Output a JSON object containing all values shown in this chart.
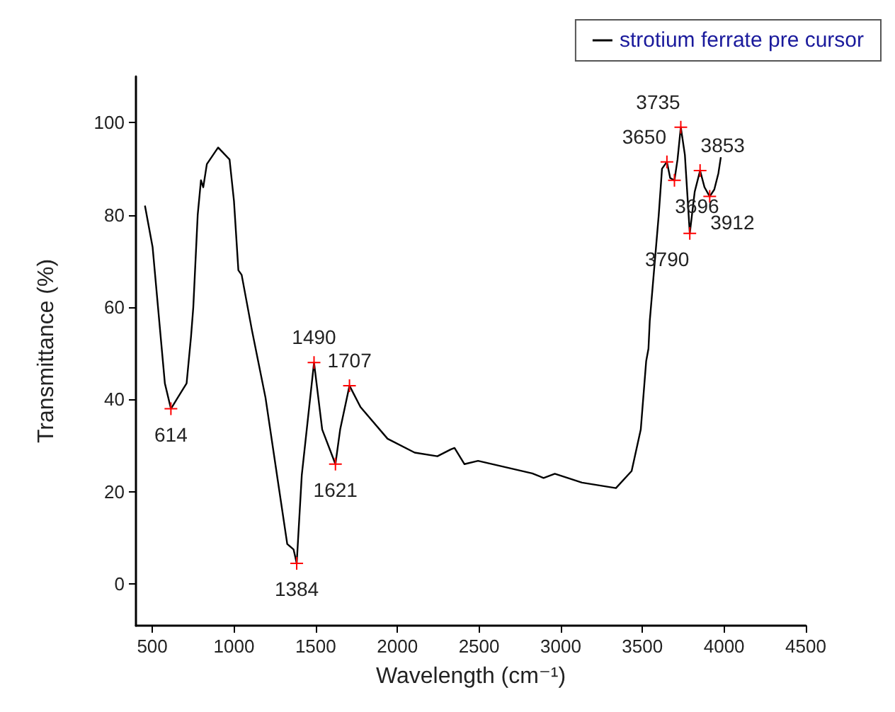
{
  "chart_data": {
    "type": "line",
    "xlabel": "Wavelength (cm⁻¹)",
    "ylabel": "Transmittance (%)",
    "xlim": [
      400,
      4500
    ],
    "xticks": [
      500,
      1000,
      1500,
      2000,
      2500,
      3000,
      3500,
      4000,
      4500
    ],
    "ylim": [
      -9,
      110
    ],
    "yticks": [
      0,
      20,
      40,
      60,
      80,
      100
    ],
    "grid": false,
    "legend": "top right",
    "marker": "none",
    "line_style": "solid",
    "series": [
      {
        "name": "strotium ferrate pre cursor",
        "color": "#000000",
        "x": [
          455,
          502,
          577,
          614,
          710,
          737,
          751,
          778,
          798,
          812,
          834,
          903,
          973,
          1000,
          1027,
          1047,
          1110,
          1193,
          1276,
          1326,
          1365,
          1384,
          1415,
          1490,
          1540,
          1621,
          1650,
          1707,
          1774,
          1940,
          2106,
          2245,
          2328,
          2350,
          2411,
          2494,
          2826,
          2895,
          2964,
          3130,
          3338,
          3434,
          3490,
          3523,
          3537,
          3545,
          3600,
          3620,
          3650,
          3670,
          3696,
          3715,
          3735,
          3760,
          3790,
          3820,
          3853,
          3880,
          3912,
          3940,
          3965,
          3980
        ],
        "values": [
          82,
          73,
          43.5,
          38,
          43.5,
          53.6,
          60,
          80,
          87.5,
          86,
          91,
          94.6,
          92,
          83,
          68,
          67,
          55,
          40.4,
          20.6,
          8.7,
          7.5,
          4.5,
          23.6,
          48,
          33.5,
          26,
          33.5,
          43,
          38.4,
          31.5,
          28.5,
          27.7,
          29.2,
          29.5,
          26,
          26.7,
          24,
          23,
          23.9,
          22,
          20.8,
          24.5,
          33.5,
          48.3,
          51,
          57,
          80,
          90,
          91.5,
          88,
          87.5,
          92,
          99,
          93,
          76,
          85,
          89.6,
          86,
          84,
          85.5,
          89,
          92.5
        ]
      }
    ],
    "annotations": [
      {
        "text": "614",
        "x": 614,
        "y": 38
      },
      {
        "text": "1384",
        "x": 1384,
        "y": 4.5
      },
      {
        "text": "1490",
        "x": 1490,
        "y": 48
      },
      {
        "text": "1621",
        "x": 1621,
        "y": 26
      },
      {
        "text": "1707",
        "x": 1707,
        "y": 43
      },
      {
        "text": "3650",
        "x": 3650,
        "y": 91.5
      },
      {
        "text": "3696",
        "x": 3696,
        "y": 87.5
      },
      {
        "text": "3735",
        "x": 3735,
        "y": 99
      },
      {
        "text": "3790",
        "x": 3790,
        "y": 76
      },
      {
        "text": "3853",
        "x": 3853,
        "y": 89.6
      },
      {
        "text": "3912",
        "x": 3912,
        "y": 84
      }
    ]
  }
}
